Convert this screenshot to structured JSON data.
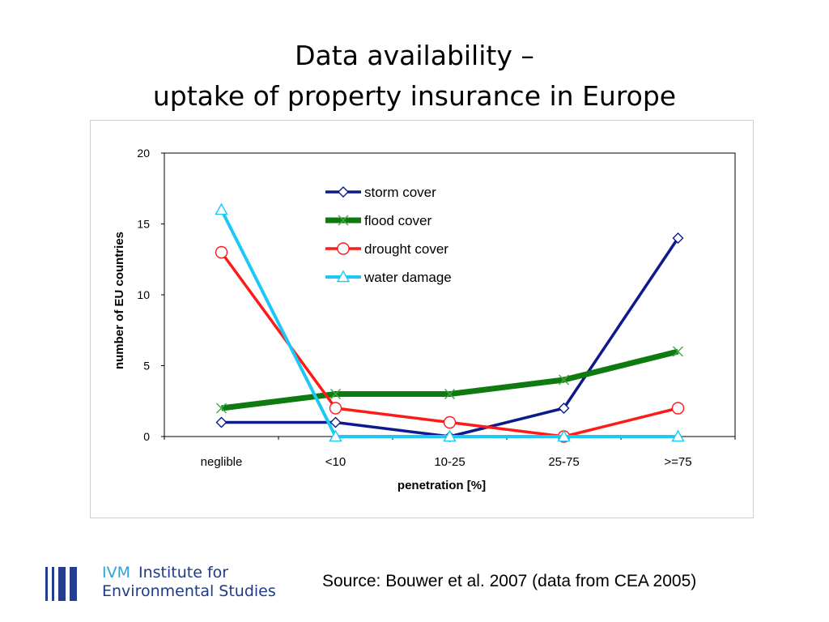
{
  "slide": {
    "title_line1": "Data availability –",
    "title_line2": "uptake of property insurance in Europe",
    "source": "Source: Bouwer et al. 2007 (data from CEA 2005)"
  },
  "logo": {
    "abbr": "IVM",
    "line1": "Institute for",
    "line2": "Environmental Studies"
  },
  "colors": {
    "storm": "#0b1a8c",
    "flood": "#0f7a0f",
    "drought": "#ff1a1a",
    "water": "#1ec8f5"
  },
  "chart_data": {
    "type": "line",
    "categories": [
      "neglible",
      "<10",
      "10-25",
      "25-75",
      ">=75"
    ],
    "xlabel": "penetration [%]",
    "ylabel": "number of EU countries",
    "ylim": [
      0,
      20
    ],
    "yticks": [
      0,
      5,
      10,
      15,
      20
    ],
    "grid": false,
    "legend_position": "top-center",
    "series": [
      {
        "name": "storm cover",
        "values": [
          1,
          1,
          0,
          2,
          14
        ],
        "marker": "diamond",
        "color": "#0b1a8c"
      },
      {
        "name": "flood cover",
        "values": [
          2,
          3,
          3,
          4,
          6
        ],
        "marker": "x",
        "color": "#0f7a0f"
      },
      {
        "name": "drought cover",
        "values": [
          13,
          2,
          1,
          0,
          2
        ],
        "marker": "circle",
        "color": "#ff1a1a"
      },
      {
        "name": "water damage",
        "values": [
          16,
          0,
          0,
          0,
          0
        ],
        "marker": "triangle",
        "color": "#1ec8f5"
      }
    ]
  }
}
